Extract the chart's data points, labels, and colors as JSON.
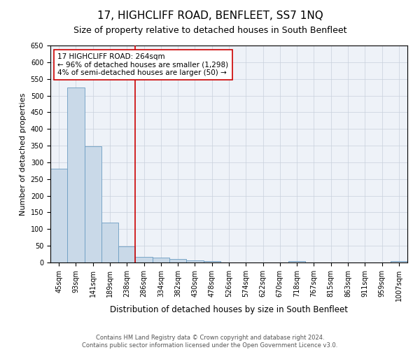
{
  "title": "17, HIGHCLIFF ROAD, BENFLEET, SS7 1NQ",
  "subtitle": "Size of property relative to detached houses in South Benfleet",
  "xlabel": "Distribution of detached houses by size in South Benfleet",
  "ylabel": "Number of detached properties",
  "footer1": "Contains HM Land Registry data © Crown copyright and database right 2024.",
  "footer2": "Contains public sector information licensed under the Open Government Licence v3.0.",
  "annotation_line1": "17 HIGHCLIFF ROAD: 264sqm",
  "annotation_line2": "← 96% of detached houses are smaller (1,298)",
  "annotation_line3": "4% of semi-detached houses are larger (50) →",
  "bar_labels": [
    "45sqm",
    "93sqm",
    "141sqm",
    "189sqm",
    "238sqm",
    "286sqm",
    "334sqm",
    "382sqm",
    "430sqm",
    "478sqm",
    "526sqm",
    "574sqm",
    "622sqm",
    "670sqm",
    "718sqm",
    "767sqm",
    "815sqm",
    "863sqm",
    "911sqm",
    "959sqm",
    "1007sqm"
  ],
  "bar_values": [
    280,
    525,
    348,
    120,
    48,
    17,
    15,
    10,
    7,
    5,
    0,
    0,
    0,
    0,
    5,
    0,
    0,
    0,
    0,
    0,
    4
  ],
  "bar_color": "#c9d9e8",
  "bar_edge_color": "#6b9dc2",
  "vline_color": "#cc0000",
  "annotation_box_color": "#cc0000",
  "ylim": [
    0,
    650
  ],
  "yticks": [
    0,
    50,
    100,
    150,
    200,
    250,
    300,
    350,
    400,
    450,
    500,
    550,
    600,
    650
  ],
  "grid_color": "#c8d0dc",
  "background_color": "#eef2f8",
  "title_fontsize": 11,
  "subtitle_fontsize": 9,
  "ylabel_fontsize": 8,
  "xlabel_fontsize": 8.5,
  "annotation_fontsize": 7.5,
  "tick_fontsize": 7,
  "footer_fontsize": 6
}
